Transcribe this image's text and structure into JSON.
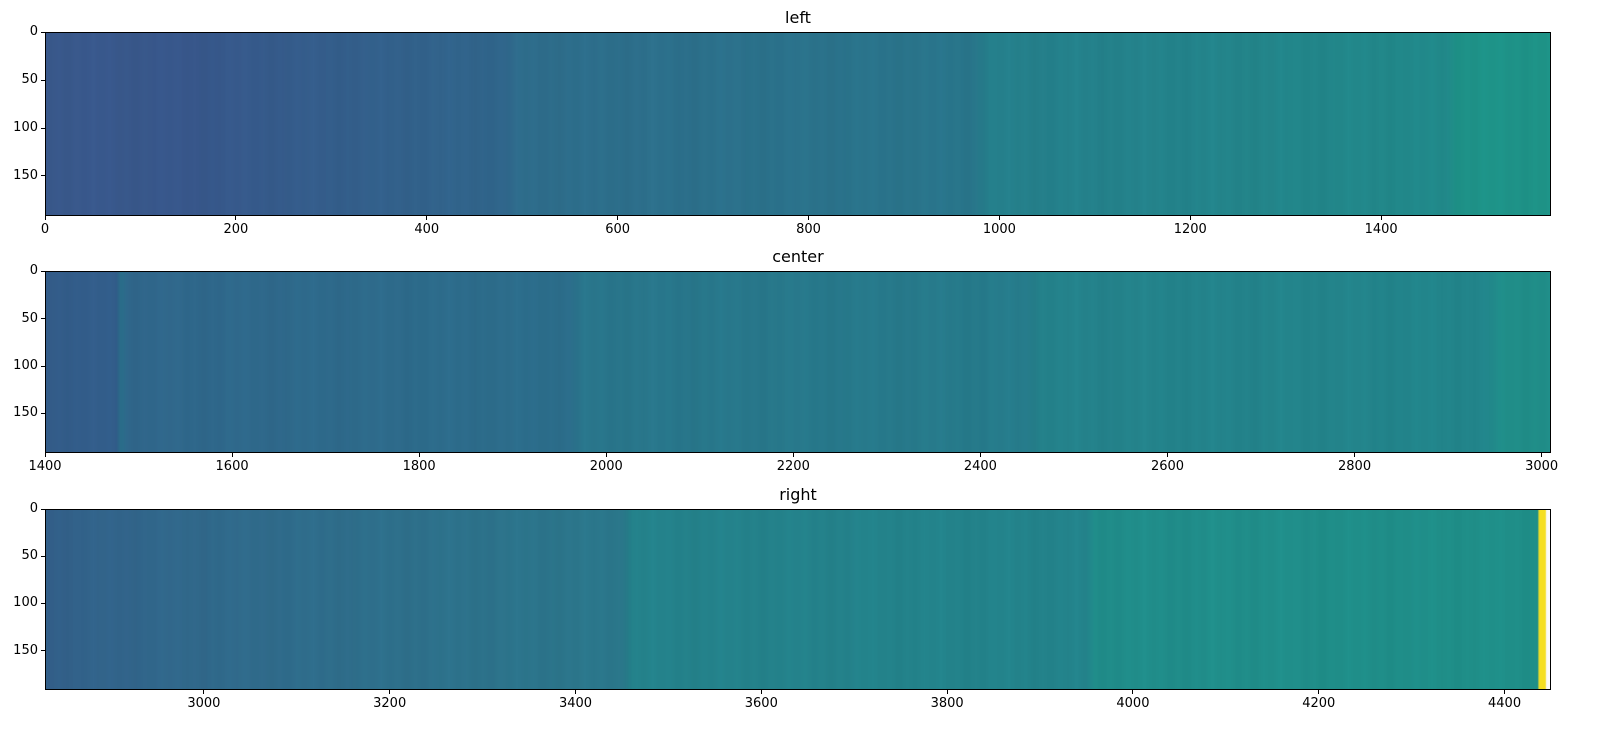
{
  "chart_data": [
    {
      "type": "heatmap",
      "title": "left",
      "colormap": "viridis",
      "xlim": [
        0,
        1578
      ],
      "ylim": [
        192,
        0
      ],
      "xticks": [
        0,
        200,
        400,
        600,
        800,
        1000,
        1200,
        1400
      ],
      "yticks": [
        0,
        50,
        100,
        150
      ],
      "column_profile": [
        [
          0,
          "#3b5b8f"
        ],
        [
          150,
          "#39598e"
        ],
        [
          480,
          "#31688e"
        ],
        [
          500,
          "#2f6f8e"
        ],
        [
          970,
          "#2a788e"
        ],
        [
          990,
          "#26828e"
        ],
        [
          1470,
          "#228c8d"
        ],
        [
          1480,
          "#1f958b"
        ],
        [
          1578,
          "#1f978b"
        ]
      ]
    },
    {
      "type": "heatmap",
      "title": "center",
      "colormap": "viridis",
      "xlim": [
        1400,
        3010
      ],
      "ylim": [
        192,
        0
      ],
      "xticks": [
        1400,
        1600,
        1800,
        2000,
        2200,
        2400,
        2600,
        2800,
        3000
      ],
      "yticks": [
        0,
        50,
        100,
        150
      ],
      "column_profile": [
        [
          1400,
          "#355f8d"
        ],
        [
          1475,
          "#335f8d"
        ],
        [
          1480,
          "#2c718e"
        ],
        [
          1490,
          "#31698e"
        ],
        [
          1960,
          "#2d708e"
        ],
        [
          1975,
          "#2a788e"
        ],
        [
          2450,
          "#277e8e"
        ],
        [
          2465,
          "#25858e"
        ],
        [
          2940,
          "#23888e"
        ],
        [
          2960,
          "#21918c"
        ],
        [
          3010,
          "#21918c"
        ]
      ]
    },
    {
      "type": "heatmap",
      "title": "right",
      "colormap": "viridis",
      "xlim": [
        2829,
        4450
      ],
      "ylim": [
        192,
        0
      ],
      "xticks": [
        3000,
        3200,
        3400,
        3600,
        3800,
        4000,
        4200,
        4400
      ],
      "yticks": [
        0,
        50,
        100,
        150
      ],
      "column_profile": [
        [
          2829,
          "#34628d"
        ],
        [
          2960,
          "#326a8e"
        ],
        [
          3450,
          "#2c7a8e"
        ],
        [
          3460,
          "#25858e"
        ],
        [
          3950,
          "#24868e"
        ],
        [
          3960,
          "#21908d"
        ],
        [
          4437,
          "#20928c"
        ],
        [
          4438,
          "#fde725"
        ],
        [
          4445,
          "#fde725"
        ],
        [
          4446,
          "#ffffff"
        ],
        [
          4450,
          "#ffffff"
        ]
      ]
    }
  ]
}
